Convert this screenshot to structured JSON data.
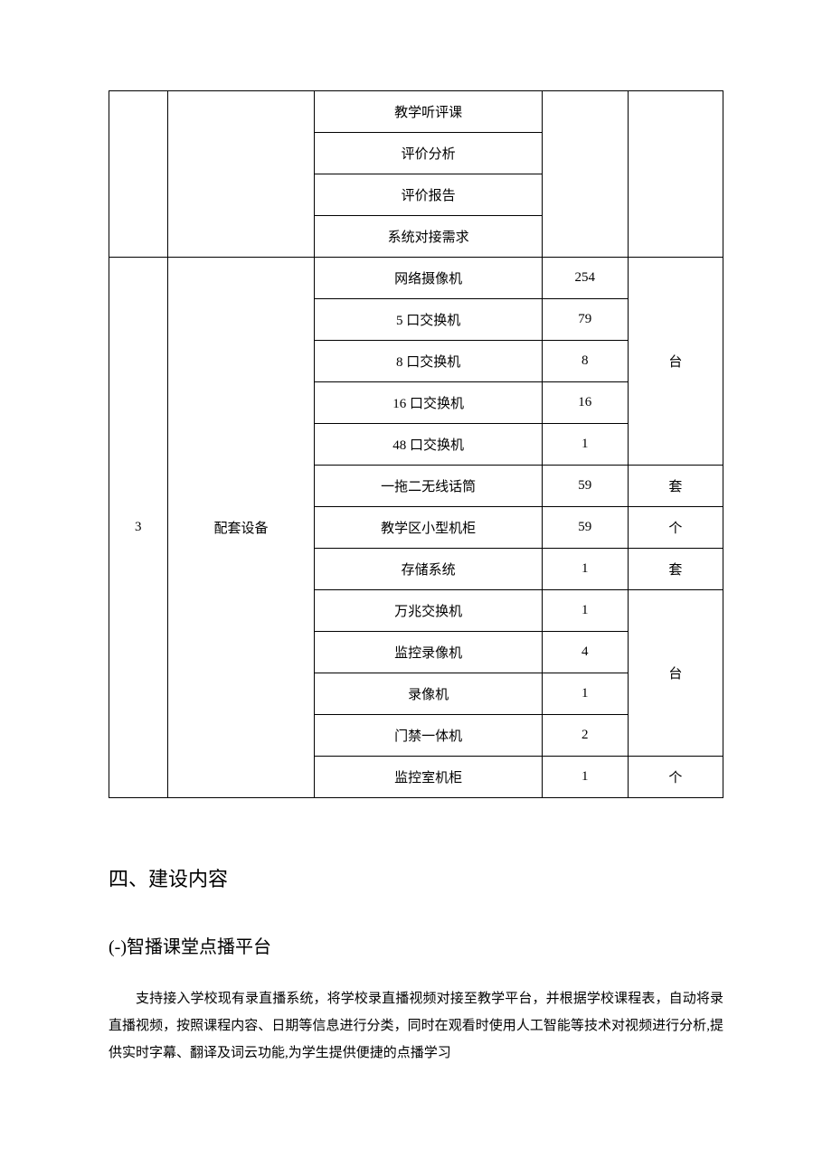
{
  "table": {
    "groupA": {
      "items": [
        {
          "name": "教学听评课"
        },
        {
          "name": "评价分析"
        },
        {
          "name": "评价报告"
        },
        {
          "name": "系统对接需求"
        }
      ]
    },
    "groupB": {
      "index": "3",
      "category": "配套设备",
      "unitsBlock1": "台",
      "unitRow6": "套",
      "unitRow7": "个",
      "unitRow8": "套",
      "unitsBlock2": "台",
      "unitRow13": "个",
      "items": [
        {
          "name": "网络摄像机",
          "qty": "254"
        },
        {
          "name": "5 口交换机",
          "qty": "79"
        },
        {
          "name": "8 口交换机",
          "qty": "8"
        },
        {
          "name": "16 口交换机",
          "qty": "16"
        },
        {
          "name": "48 口交换机",
          "qty": "1"
        },
        {
          "name": "一拖二无线话筒",
          "qty": "59"
        },
        {
          "name": "教学区小型机柜",
          "qty": "59"
        },
        {
          "name": "存储系统",
          "qty": "1"
        },
        {
          "name": "万兆交换机",
          "qty": "1"
        },
        {
          "name": "监控录像机",
          "qty": "4"
        },
        {
          "name": "录像机",
          "qty": "1"
        },
        {
          "name": "门禁一体机",
          "qty": "2"
        },
        {
          "name": "监控室机柜",
          "qty": "1"
        }
      ]
    },
    "styling": {
      "border_color": "#000000",
      "cell_padding": "12px 8px",
      "text_align": "center",
      "font_size": 15,
      "column_widths_percent": [
        9.5,
        24,
        37,
        14,
        15.5
      ]
    }
  },
  "headings": {
    "section4": "四、建设内容",
    "subsection4_1": "(-)智播课堂点播平台"
  },
  "paragraph": "支持接入学校现有录直播系统，将学校录直播视频对接至教学平台，并根据学校课程表，自动将录直播视频，按照课程内容、日期等信息进行分类，同时在观看时使用人工智能等技术对视频进行分析,提供实时字幕、翻译及词云功能,为学生提供便捷的点播学习",
  "text_style": {
    "heading_font": "SimHei",
    "body_font": "SimSun",
    "heading_size_pt": 22,
    "subheading_size_pt": 20,
    "body_size_pt": 15,
    "line_height": 2.0,
    "text_indent_em": 2,
    "color": "#000000",
    "background": "#ffffff"
  }
}
